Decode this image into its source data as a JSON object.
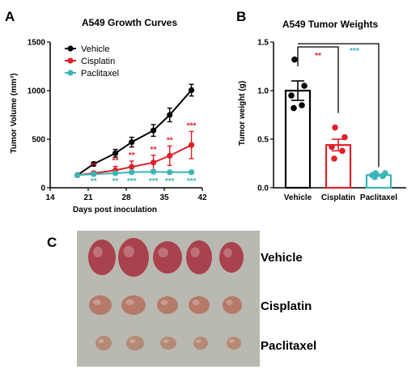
{
  "panels": {
    "a": "A",
    "b": "B",
    "c": "C"
  },
  "chart_data": [
    {
      "type": "line",
      "title": "A549 Growth Curves",
      "xlabel": "Days post inoculation",
      "ylabel": "Tumor Volume (mm³)",
      "xlim": [
        14,
        42
      ],
      "ylim": [
        0,
        1500
      ],
      "xticks": [
        "14",
        "21",
        "28",
        "35",
        "42"
      ],
      "yticks": [
        "0",
        "500",
        "1000",
        "1500"
      ],
      "x": [
        19,
        22,
        26,
        29,
        33,
        36,
        40
      ],
      "legend_position": "top-left",
      "series": [
        {
          "name": "Vehicle",
          "color": "#000000",
          "values": [
            130,
            245,
            355,
            470,
            590,
            750,
            1005
          ],
          "errors": [
            0,
            20,
            40,
            50,
            60,
            70,
            60
          ],
          "stars": []
        },
        {
          "name": "Cisplatin",
          "color": "#e0202a",
          "values": [
            130,
            150,
            180,
            215,
            260,
            330,
            440
          ],
          "errors": [
            0,
            15,
            40,
            60,
            75,
            100,
            140
          ],
          "stars": [
            "",
            "**",
            "**",
            "**",
            "**",
            "**",
            "***"
          ]
        },
        {
          "name": "Paclitaxel",
          "color": "#3bb5b5",
          "values": [
            130,
            140,
            150,
            160,
            165,
            160,
            160
          ],
          "errors": [
            0,
            10,
            15,
            15,
            15,
            15,
            15
          ],
          "stars": [
            "",
            "**",
            "**",
            "***",
            "***",
            "***",
            "***"
          ]
        }
      ]
    },
    {
      "type": "bar",
      "title": "A549 Tumor Weights",
      "ylabel": "Tumor weight (g)",
      "ylim": [
        0,
        1.5
      ],
      "yticks": [
        "0.0",
        "0.5",
        "1.0",
        "1.5"
      ],
      "categories": [
        "Vehicle",
        "Cisplatin",
        "Paclitaxel"
      ],
      "values": [
        1.0,
        0.44,
        0.13
      ],
      "errors": [
        0.1,
        0.06,
        0.01
      ],
      "colors": [
        "#000000",
        "#e0202a",
        "#3bb5b5"
      ],
      "points": [
        [
          1.32,
          1.05,
          0.95,
          0.85,
          0.82
        ],
        [
          0.62,
          0.52,
          0.42,
          0.38,
          0.3
        ],
        [
          0.15,
          0.15,
          0.13,
          0.12,
          0.11
        ]
      ],
      "comparisons": [
        {
          "to": "Cisplatin",
          "label": "**",
          "color": "#e0202a"
        },
        {
          "to": "Paclitaxel",
          "label": "***",
          "color": "#3bb5b5"
        }
      ]
    }
  ],
  "photo": {
    "rows": [
      "Vehicle",
      "Cisplatin",
      "Paclitaxel"
    ],
    "background": "#b9b8b1",
    "tumor_counts": [
      5,
      5,
      5
    ]
  }
}
